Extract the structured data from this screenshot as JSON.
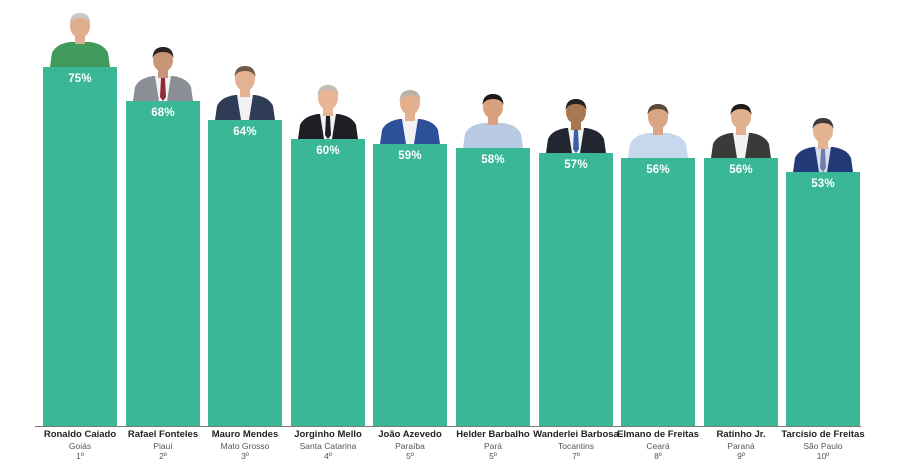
{
  "chart_data": {
    "type": "bar",
    "categories": [
      "Ronaldo Caiado",
      "Rafael Fonteles",
      "Mauro Mendes",
      "Jorginho Mello",
      "João Azevedo",
      "Helder Barbalho",
      "Wanderlei Barbosa",
      "Elmano de Freitas",
      "Ratinho Jr.",
      "Tarcísio de Freitas"
    ],
    "states": [
      "Goiás",
      "Piauí",
      "Mato Grosso",
      "Santa Catarina",
      "Paraíba",
      "Pará",
      "Tocantins",
      "Ceará",
      "Paraná",
      "São Paulo"
    ],
    "ranks": [
      "1º",
      "2º",
      "3º",
      "4º",
      "5º",
      "5º",
      "7º",
      "8º",
      "9º",
      "10º"
    ],
    "values": [
      75,
      68,
      64,
      60,
      59,
      58,
      57,
      56,
      56,
      53
    ],
    "value_labels": [
      "75%",
      "68%",
      "64%",
      "60%",
      "59%",
      "58%",
      "57%",
      "56%",
      "56%",
      "53%"
    ],
    "ylim": [
      0,
      100
    ],
    "grid": false,
    "legend": "none",
    "bar_color": "#3ab796",
    "value_label_color": "#ffffff"
  },
  "photos": [
    {
      "suit": "#3f9a5c",
      "shirt": "#3f9a5c",
      "tie": "",
      "hair": "#c8c8c8",
      "skin": "#e0ad8f"
    },
    {
      "suit": "#8a8f96",
      "shirt": "#f2f2f2",
      "tie": "#8e2d3a",
      "hair": "#2a2420",
      "skin": "#c99577"
    },
    {
      "suit": "#2f3c55",
      "shirt": "#f2f2f2",
      "tie": "",
      "hair": "#6d5a48",
      "skin": "#e2b293"
    },
    {
      "suit": "#1e1f24",
      "shirt": "#f2f2f2",
      "tie": "#1e1f24",
      "hair": "#c4bdb5",
      "skin": "#e8b696"
    },
    {
      "suit": "#2e4f9a",
      "shirt": "#f2f2f2",
      "tie": "",
      "hair": "#b8b2ab",
      "skin": "#e3b090"
    },
    {
      "suit": "#b8cbe3",
      "shirt": "#b8cbe3",
      "tie": "",
      "hair": "#1e1a16",
      "skin": "#d8a27e"
    },
    {
      "suit": "#222630",
      "shirt": "#f2f2f2",
      "tie": "#3a5fa8",
      "hair": "#242020",
      "skin": "#a9774f"
    },
    {
      "suit": "#c7d8ee",
      "shirt": "#c7d8ee",
      "tie": "",
      "hair": "#5a4a3c",
      "skin": "#d9a582"
    },
    {
      "suit": "#3a3a3a",
      "shirt": "#f2f2f2",
      "tie": "",
      "hair": "#1f1a15",
      "skin": "#e1b08f"
    },
    {
      "suit": "#233a78",
      "shirt": "#d8e0ee",
      "tie": "#6f7fa8",
      "hair": "#3b3a38",
      "skin": "#e4b392"
    }
  ]
}
